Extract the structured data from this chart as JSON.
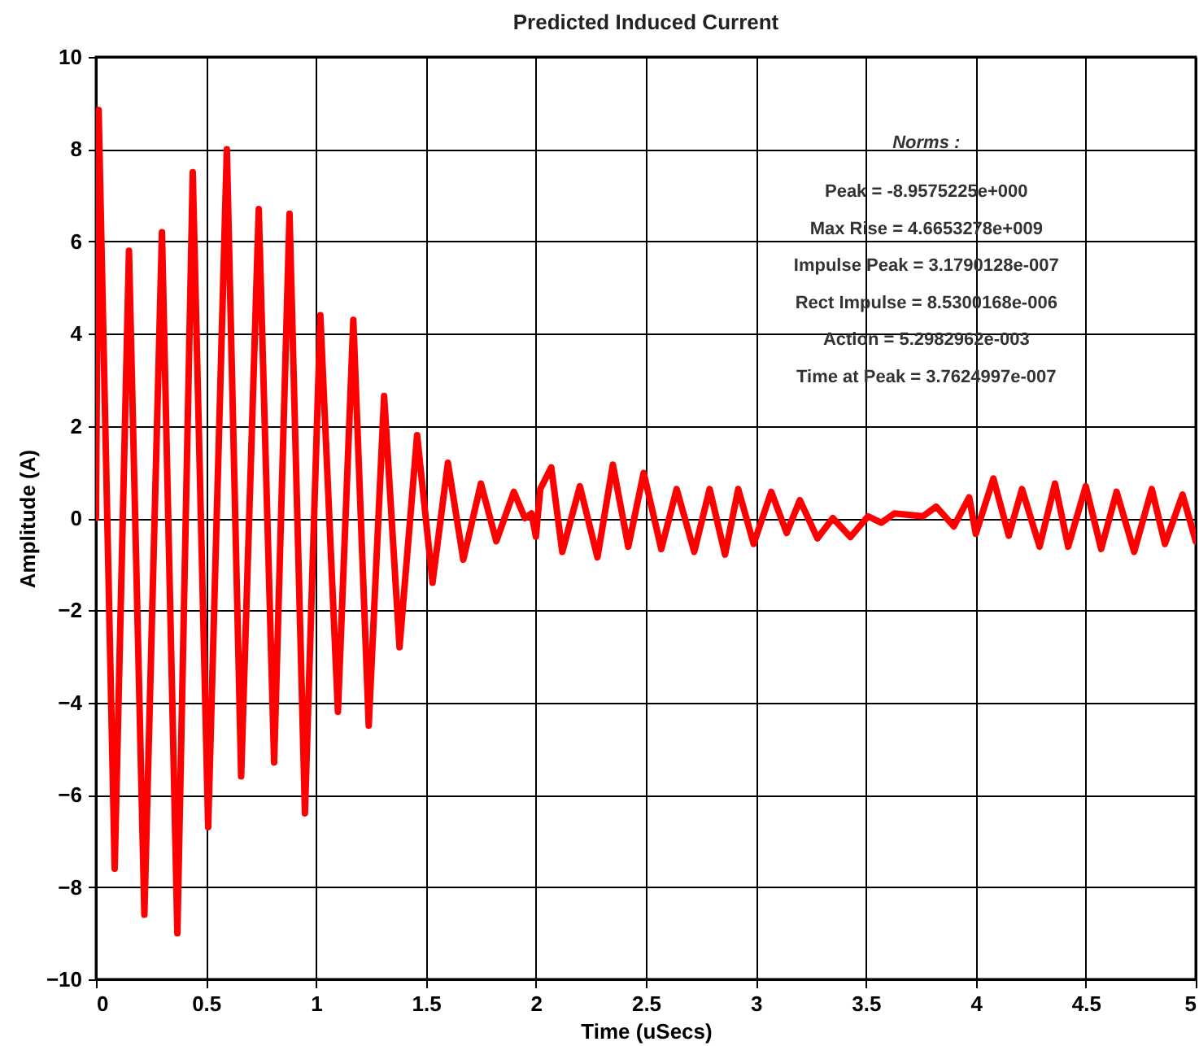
{
  "chart_data": {
    "type": "line",
    "title": "Predicted Induced Current",
    "xlabel": "Time (uSecs)",
    "ylabel": "Amplitude (A)",
    "x": [
      0,
      0.012,
      0.085,
      0.15,
      0.22,
      0.3,
      0.37,
      0.44,
      0.51,
      0.595,
      0.66,
      0.74,
      0.81,
      0.88,
      0.95,
      1.02,
      1.1,
      1.17,
      1.24,
      1.31,
      1.38,
      1.46,
      1.53,
      1.6,
      1.67,
      1.75,
      1.82,
      1.9,
      1.95,
      1.98,
      2.0,
      2.02,
      2.07,
      2.12,
      2.2,
      2.28,
      2.35,
      2.42,
      2.49,
      2.57,
      2.64,
      2.72,
      2.79,
      2.86,
      2.92,
      2.99,
      3.07,
      3.14,
      3.2,
      3.28,
      3.35,
      3.43,
      3.51,
      3.57,
      3.63,
      3.76,
      3.82,
      3.9,
      3.97,
      4.0,
      4.08,
      4.15,
      4.21,
      4.29,
      4.36,
      4.42,
      4.5,
      4.57,
      4.64,
      4.72,
      4.8,
      4.86,
      4.94,
      5.0
    ],
    "series": [
      {
        "color": "#ff0000",
        "values": [
          0,
          8.85,
          -7.6,
          5.8,
          -8.6,
          6.2,
          -9.0,
          7.5,
          -6.7,
          8.0,
          -5.6,
          6.7,
          -5.3,
          6.6,
          -6.4,
          4.4,
          -4.2,
          4.3,
          -4.5,
          2.65,
          -2.8,
          1.8,
          -1.4,
          1.2,
          -0.9,
          0.75,
          -0.5,
          0.57,
          0,
          0.1,
          -0.4,
          0.63,
          1.1,
          -0.73,
          0.69,
          -0.85,
          1.16,
          -0.62,
          0.98,
          -0.67,
          0.63,
          -0.73,
          0.63,
          -0.79,
          0.63,
          -0.56,
          0.57,
          -0.32,
          0.39,
          -0.44,
          0,
          -0.41,
          0.04,
          -0.1,
          0.1,
          0.04,
          0.25,
          -0.18,
          0.45,
          -0.34,
          0.86,
          -0.38,
          0.63,
          -0.62,
          0.75,
          -0.62,
          0.69,
          -0.67,
          0.57,
          -0.73,
          0.63,
          -0.56,
          0.51,
          -0.5
        ]
      }
    ],
    "xlim": [
      0,
      5
    ],
    "xticks": [
      0,
      0.5,
      1,
      1.5,
      2,
      2.5,
      3,
      3.5,
      4,
      4.5,
      5
    ],
    "ylim": [
      -10,
      10
    ],
    "yticks": [
      -10,
      -8,
      -6,
      -4,
      -2,
      0,
      2,
      4,
      6,
      8,
      10
    ],
    "grid": true,
    "marker": "none",
    "line_style": "solid",
    "annotations": [
      "Norms :",
      "Peak = -8.9575225e+000",
      "Max Rise = 4.6653278e+009",
      "Impulse Peak = 3.1790128e-007",
      "Rect Impulse = 8.5300168e-006",
      "Action = 5.2982962e-003",
      "Time at Peak = 3.7624997e-007"
    ]
  }
}
